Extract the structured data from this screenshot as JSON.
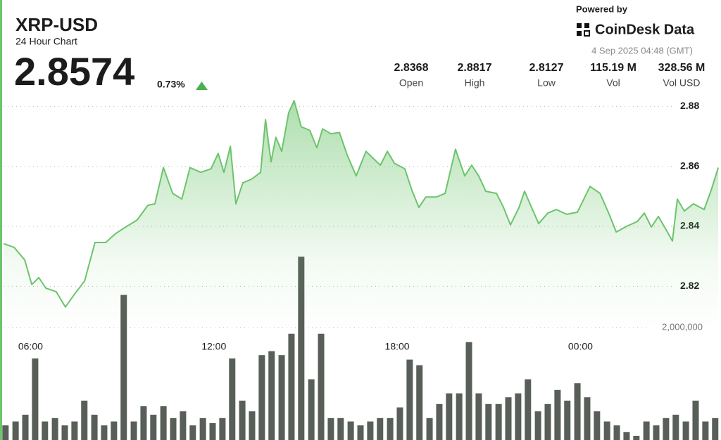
{
  "header": {
    "title": "XRP-USD",
    "subtitle": "24 Hour Chart",
    "price": "2.8574",
    "change": "0.73%",
    "stats": [
      {
        "value": "2.8368",
        "label": "Open"
      },
      {
        "value": "2.8817",
        "label": "High"
      },
      {
        "value": "2.8127",
        "label": "Low"
      },
      {
        "value": "115.19 M",
        "label": "Vol"
      },
      {
        "value": "328.56 M",
        "label": "Vol USD"
      }
    ]
  },
  "branding": {
    "powered_by": "Powered by",
    "brand": "CoinDesk Data",
    "timestamp": "4 Sep 2025 04:48 (GMT)"
  },
  "chart_data": {
    "type": "line",
    "color": "#6cc46c",
    "x": [
      5.12,
      5.46,
      5.81,
      6.04,
      6.27,
      6.5,
      6.84,
      7.14,
      7.42,
      7.77,
      8.11,
      8.46,
      8.8,
      9.15,
      9.49,
      9.84,
      10.07,
      10.35,
      10.65,
      10.95,
      11.22,
      11.57,
      11.91,
      12.14,
      12.33,
      12.54,
      12.72,
      12.95,
      13.23,
      13.53,
      13.69,
      13.87,
      14.03,
      14.22,
      14.45,
      14.63,
      14.86,
      15.14,
      15.37,
      15.56,
      15.83,
      16.11,
      16.36,
      16.66,
      16.98,
      17.21,
      17.45,
      17.68,
      17.91,
      18.25,
      18.48,
      18.71,
      18.94,
      19.29,
      19.57,
      19.91,
      20.21,
      20.44,
      20.67,
      20.9,
      21.25,
      21.48,
      21.71,
      21.99,
      22.17,
      22.4,
      22.63,
      22.93,
      23.21,
      23.55,
      23.9,
      24.31,
      24.64,
      24.94,
      25.17,
      25.51,
      25.86,
      26.09,
      26.32,
      26.55,
      26.78,
      27.01,
      27.17,
      27.4,
      27.7,
      28.05,
      28.28,
      28.51
    ],
    "values": [
      2.8342,
      2.833,
      2.8288,
      2.8206,
      2.8229,
      2.8194,
      2.8182,
      2.8131,
      2.8171,
      2.8218,
      2.8346,
      2.8346,
      2.8377,
      2.84,
      2.8421,
      2.847,
      2.8475,
      2.8596,
      2.851,
      2.8491,
      2.8596,
      2.858,
      2.8592,
      2.8643,
      2.858,
      2.8667,
      2.8475,
      2.8545,
      2.8557,
      2.858,
      2.8756,
      2.8615,
      2.8697,
      2.865,
      2.8779,
      2.8819,
      2.8732,
      2.872,
      2.8662,
      2.8725,
      2.8709,
      2.8713,
      2.8639,
      2.8568,
      2.865,
      2.8627,
      2.8604,
      2.865,
      2.861,
      2.8592,
      2.8521,
      2.8463,
      2.8498,
      2.8498,
      2.851,
      2.8657,
      2.8568,
      2.8604,
      2.8568,
      2.8517,
      2.851,
      2.8463,
      2.8405,
      2.8463,
      2.8517,
      2.8463,
      2.8409,
      2.8444,
      2.8456,
      2.844,
      2.8447,
      2.8533,
      2.851,
      2.844,
      2.8381,
      2.84,
      2.8416,
      2.8444,
      2.8398,
      2.8433,
      2.8393,
      2.8351,
      2.8491,
      2.8451,
      2.8475,
      2.8456,
      2.8521,
      2.8596
    ],
    "xlim": [
      5.0,
      28.6
    ],
    "xticks": [
      {
        "value": 6,
        "label": "06:00"
      },
      {
        "value": 12,
        "label": "12:00"
      },
      {
        "value": 18,
        "label": "18:00"
      },
      {
        "value": 24,
        "label": "00:00"
      }
    ],
    "ylim": [
      2.805,
      2.885
    ],
    "yticks": [
      2.82,
      2.84,
      2.86,
      2.88
    ],
    "grid": true,
    "volume": {
      "type": "bar",
      "color": "#585e58",
      "x": [
        5.18,
        5.51,
        5.83,
        6.15,
        6.47,
        6.8,
        7.12,
        7.44,
        7.76,
        8.09,
        8.41,
        8.73,
        9.05,
        9.38,
        9.7,
        10.02,
        10.35,
        10.67,
        10.99,
        11.31,
        11.64,
        11.96,
        12.28,
        12.6,
        12.93,
        13.25,
        13.57,
        13.89,
        14.22,
        14.54,
        14.86,
        15.19,
        15.51,
        15.83,
        16.15,
        16.48,
        16.8,
        17.12,
        17.44,
        17.77,
        18.09,
        18.41,
        18.73,
        19.06,
        19.38,
        19.7,
        20.03,
        20.35,
        20.67,
        20.99,
        21.32,
        21.64,
        21.96,
        22.28,
        22.61,
        22.93,
        23.25,
        23.57,
        23.9,
        24.22,
        24.54,
        24.87,
        25.19,
        25.51,
        25.83,
        26.16,
        26.48,
        26.8,
        27.12,
        27.45,
        27.77,
        28.09,
        28.41
      ],
      "values": [
        260000,
        330000,
        450000,
        1450000,
        330000,
        390000,
        260000,
        330000,
        700000,
        450000,
        260000,
        330000,
        2580000,
        330000,
        600000,
        450000,
        600000,
        390000,
        510000,
        260000,
        390000,
        300000,
        390000,
        1450000,
        700000,
        510000,
        1510000,
        1580000,
        1510000,
        1890000,
        3260000,
        1080000,
        1890000,
        390000,
        390000,
        330000,
        260000,
        330000,
        390000,
        390000,
        580000,
        1430000,
        1330000,
        390000,
        640000,
        830000,
        830000,
        1740000,
        830000,
        640000,
        640000,
        760000,
        830000,
        1080000,
        510000,
        640000,
        890000,
        700000,
        1010000,
        760000,
        510000,
        330000,
        260000,
        140000,
        75000,
        330000,
        260000,
        390000,
        450000,
        330000,
        700000,
        330000,
        390000
      ],
      "y2lim": [
        0,
        3900000
      ],
      "y2ticks": [
        {
          "value": 2000000,
          "label": "2,000,000"
        }
      ]
    }
  }
}
